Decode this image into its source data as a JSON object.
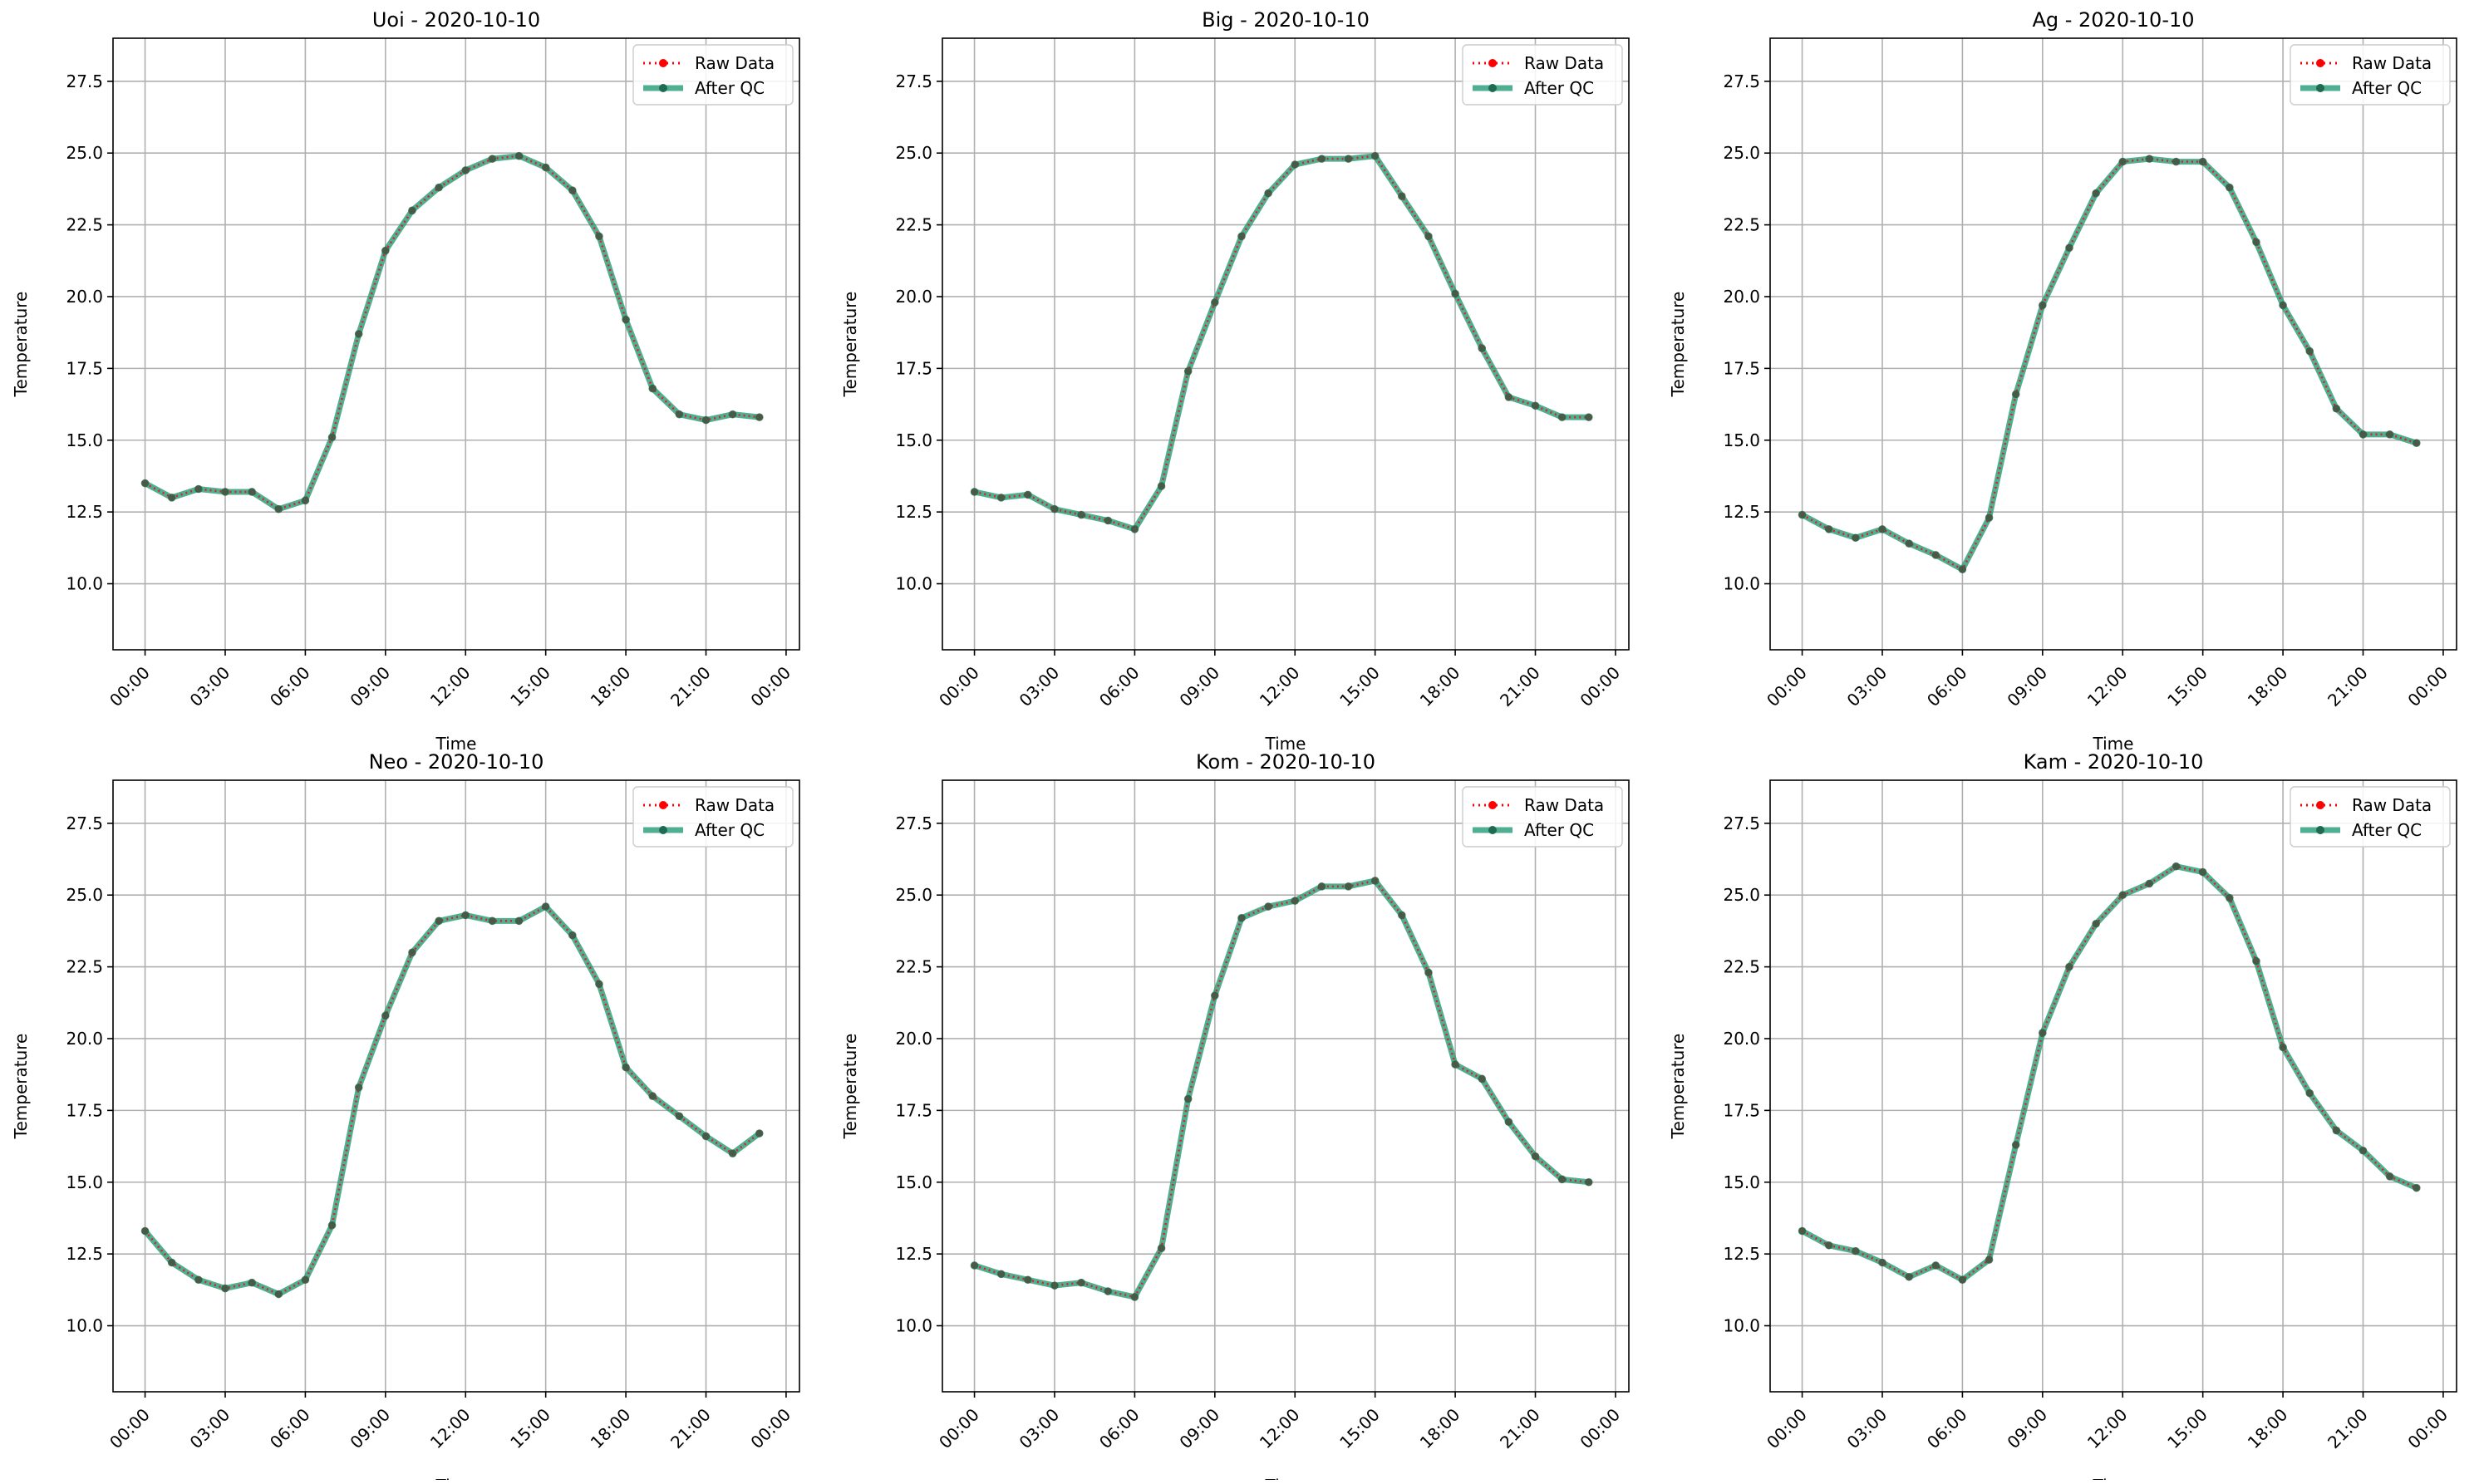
{
  "figure": {
    "background": "#ffffff"
  },
  "colors": {
    "raw": "#ff0000",
    "qc": "#2a9d7a",
    "grid": "#b0b0b0",
    "axis": "#000000"
  },
  "chart_data": [
    {
      "type": "line",
      "title": "Uoi - 2020-10-10",
      "xlabel": "Time",
      "ylabel": "Temperature",
      "x": [
        "00:00",
        "01:00",
        "02:00",
        "03:00",
        "04:00",
        "05:00",
        "06:00",
        "07:00",
        "08:00",
        "09:00",
        "10:00",
        "11:00",
        "12:00",
        "13:00",
        "14:00",
        "15:00",
        "16:00",
        "17:00",
        "18:00",
        "19:00",
        "20:00",
        "21:00",
        "22:00",
        "23:00"
      ],
      "xticks": [
        "00:00",
        "03:00",
        "06:00",
        "09:00",
        "12:00",
        "15:00",
        "18:00",
        "21:00",
        "00:00"
      ],
      "yticks": [
        "10.0",
        "12.5",
        "15.0",
        "17.5",
        "20.0",
        "22.5",
        "25.0",
        "27.5"
      ],
      "ylim": [
        7.7,
        29.0
      ],
      "xlim_hours": [
        -1.2,
        24.5
      ],
      "grid": true,
      "legend_position": "top-right",
      "series": [
        {
          "name": "Raw Data",
          "style": "dotted-red",
          "values": [
            13.5,
            13.0,
            13.3,
            13.2,
            13.2,
            12.6,
            12.9,
            15.1,
            18.7,
            21.6,
            23.0,
            23.8,
            24.4,
            24.8,
            24.9,
            24.5,
            23.7,
            22.1,
            19.2,
            16.8,
            15.9,
            15.7,
            15.9,
            15.8
          ]
        },
        {
          "name": "After QC",
          "style": "solid-green",
          "values": [
            13.5,
            13.0,
            13.3,
            13.2,
            13.2,
            12.6,
            12.9,
            15.1,
            18.7,
            21.6,
            23.0,
            23.8,
            24.4,
            24.8,
            24.9,
            24.5,
            23.7,
            22.1,
            19.2,
            16.8,
            15.9,
            15.7,
            15.9,
            15.8
          ]
        }
      ]
    },
    {
      "type": "line",
      "title": "Big - 2020-10-10",
      "xlabel": "Time",
      "ylabel": "Temperature",
      "x": [
        "00:00",
        "01:00",
        "02:00",
        "03:00",
        "04:00",
        "05:00",
        "06:00",
        "07:00",
        "08:00",
        "09:00",
        "10:00",
        "11:00",
        "12:00",
        "13:00",
        "14:00",
        "15:00",
        "16:00",
        "17:00",
        "18:00",
        "19:00",
        "20:00",
        "21:00",
        "22:00",
        "23:00"
      ],
      "xticks": [
        "00:00",
        "03:00",
        "06:00",
        "09:00",
        "12:00",
        "15:00",
        "18:00",
        "21:00",
        "00:00"
      ],
      "yticks": [
        "10.0",
        "12.5",
        "15.0",
        "17.5",
        "20.0",
        "22.5",
        "25.0",
        "27.5"
      ],
      "ylim": [
        7.7,
        29.0
      ],
      "xlim_hours": [
        -1.2,
        24.5
      ],
      "grid": true,
      "legend_position": "top-right",
      "series": [
        {
          "name": "Raw Data",
          "style": "dotted-red",
          "values": [
            13.2,
            13.0,
            13.1,
            12.6,
            12.4,
            12.2,
            11.9,
            13.4,
            17.4,
            19.8,
            22.1,
            23.6,
            24.6,
            24.8,
            24.8,
            24.9,
            23.5,
            22.1,
            20.1,
            18.2,
            16.5,
            16.2,
            15.8,
            15.8
          ]
        },
        {
          "name": "After QC",
          "style": "solid-green",
          "values": [
            13.2,
            13.0,
            13.1,
            12.6,
            12.4,
            12.2,
            11.9,
            13.4,
            17.4,
            19.8,
            22.1,
            23.6,
            24.6,
            24.8,
            24.8,
            24.9,
            23.5,
            22.1,
            20.1,
            18.2,
            16.5,
            16.2,
            15.8,
            15.8
          ]
        }
      ]
    },
    {
      "type": "line",
      "title": "Ag - 2020-10-10",
      "xlabel": "Time",
      "ylabel": "Temperature",
      "x": [
        "00:00",
        "01:00",
        "02:00",
        "03:00",
        "04:00",
        "05:00",
        "06:00",
        "07:00",
        "08:00",
        "09:00",
        "10:00",
        "11:00",
        "12:00",
        "13:00",
        "14:00",
        "15:00",
        "16:00",
        "17:00",
        "18:00",
        "19:00",
        "20:00",
        "21:00",
        "22:00",
        "23:00"
      ],
      "xticks": [
        "00:00",
        "03:00",
        "06:00",
        "09:00",
        "12:00",
        "15:00",
        "18:00",
        "21:00",
        "00:00"
      ],
      "yticks": [
        "10.0",
        "12.5",
        "15.0",
        "17.5",
        "20.0",
        "22.5",
        "25.0",
        "27.5"
      ],
      "ylim": [
        7.7,
        29.0
      ],
      "xlim_hours": [
        -1.2,
        24.5
      ],
      "grid": true,
      "legend_position": "top-right",
      "series": [
        {
          "name": "Raw Data",
          "style": "dotted-red",
          "values": [
            12.4,
            11.9,
            11.6,
            11.9,
            11.4,
            11.0,
            10.5,
            12.3,
            16.6,
            19.7,
            21.7,
            23.6,
            24.7,
            24.8,
            24.7,
            24.7,
            23.8,
            21.9,
            19.7,
            18.1,
            16.1,
            15.2,
            15.2,
            14.9
          ]
        },
        {
          "name": "After QC",
          "style": "solid-green",
          "values": [
            12.4,
            11.9,
            11.6,
            11.9,
            11.4,
            11.0,
            10.5,
            12.3,
            16.6,
            19.7,
            21.7,
            23.6,
            24.7,
            24.8,
            24.7,
            24.7,
            23.8,
            21.9,
            19.7,
            18.1,
            16.1,
            15.2,
            15.2,
            14.9
          ]
        }
      ]
    },
    {
      "type": "line",
      "title": "Neo - 2020-10-10",
      "xlabel": "Time",
      "ylabel": "Temperature",
      "x": [
        "00:00",
        "01:00",
        "02:00",
        "03:00",
        "04:00",
        "05:00",
        "06:00",
        "07:00",
        "08:00",
        "09:00",
        "10:00",
        "11:00",
        "12:00",
        "13:00",
        "14:00",
        "15:00",
        "16:00",
        "17:00",
        "18:00",
        "19:00",
        "20:00",
        "21:00",
        "22:00",
        "23:00"
      ],
      "xticks": [
        "00:00",
        "03:00",
        "06:00",
        "09:00",
        "12:00",
        "15:00",
        "18:00",
        "21:00",
        "00:00"
      ],
      "yticks": [
        "10.0",
        "12.5",
        "15.0",
        "17.5",
        "20.0",
        "22.5",
        "25.0",
        "27.5"
      ],
      "ylim": [
        7.7,
        29.0
      ],
      "xlim_hours": [
        -1.2,
        24.5
      ],
      "grid": true,
      "legend_position": "top-right",
      "series": [
        {
          "name": "Raw Data",
          "style": "dotted-red",
          "values": [
            13.3,
            12.2,
            11.6,
            11.3,
            11.5,
            11.1,
            11.6,
            13.5,
            18.3,
            20.8,
            23.0,
            24.1,
            24.3,
            24.1,
            24.1,
            24.6,
            23.6,
            21.9,
            19.0,
            18.0,
            17.3,
            16.6,
            16.0,
            16.7
          ]
        },
        {
          "name": "After QC",
          "style": "solid-green",
          "values": [
            13.3,
            12.2,
            11.6,
            11.3,
            11.5,
            11.1,
            11.6,
            13.5,
            18.3,
            20.8,
            23.0,
            24.1,
            24.3,
            24.1,
            24.1,
            24.6,
            23.6,
            21.9,
            19.0,
            18.0,
            17.3,
            16.6,
            16.0,
            16.7
          ]
        }
      ]
    },
    {
      "type": "line",
      "title": "Kom - 2020-10-10",
      "xlabel": "Time",
      "ylabel": "Temperature",
      "x": [
        "00:00",
        "01:00",
        "02:00",
        "03:00",
        "04:00",
        "05:00",
        "06:00",
        "07:00",
        "08:00",
        "09:00",
        "10:00",
        "11:00",
        "12:00",
        "13:00",
        "14:00",
        "15:00",
        "16:00",
        "17:00",
        "18:00",
        "19:00",
        "20:00",
        "21:00",
        "22:00",
        "23:00"
      ],
      "xticks": [
        "00:00",
        "03:00",
        "06:00",
        "09:00",
        "12:00",
        "15:00",
        "18:00",
        "21:00",
        "00:00"
      ],
      "yticks": [
        "10.0",
        "12.5",
        "15.0",
        "17.5",
        "20.0",
        "22.5",
        "25.0",
        "27.5"
      ],
      "ylim": [
        7.7,
        29.0
      ],
      "xlim_hours": [
        -1.2,
        24.5
      ],
      "grid": true,
      "legend_position": "top-right",
      "series": [
        {
          "name": "Raw Data",
          "style": "dotted-red",
          "values": [
            12.1,
            11.8,
            11.6,
            11.4,
            11.5,
            11.2,
            11.0,
            12.7,
            17.9,
            21.5,
            24.2,
            24.6,
            24.8,
            25.3,
            25.3,
            25.5,
            24.3,
            22.3,
            19.1,
            18.6,
            17.1,
            15.9,
            15.1,
            15.0
          ]
        },
        {
          "name": "After QC",
          "style": "solid-green",
          "values": [
            12.1,
            11.8,
            11.6,
            11.4,
            11.5,
            11.2,
            11.0,
            12.7,
            17.9,
            21.5,
            24.2,
            24.6,
            24.8,
            25.3,
            25.3,
            25.5,
            24.3,
            22.3,
            19.1,
            18.6,
            17.1,
            15.9,
            15.1,
            15.0
          ]
        }
      ]
    },
    {
      "type": "line",
      "title": "Kam - 2020-10-10",
      "xlabel": "Time",
      "ylabel": "Temperature",
      "x": [
        "00:00",
        "01:00",
        "02:00",
        "03:00",
        "04:00",
        "05:00",
        "06:00",
        "07:00",
        "08:00",
        "09:00",
        "10:00",
        "11:00",
        "12:00",
        "13:00",
        "14:00",
        "15:00",
        "16:00",
        "17:00",
        "18:00",
        "19:00",
        "20:00",
        "21:00",
        "22:00",
        "23:00"
      ],
      "xticks": [
        "00:00",
        "03:00",
        "06:00",
        "09:00",
        "12:00",
        "15:00",
        "18:00",
        "21:00",
        "00:00"
      ],
      "yticks": [
        "10.0",
        "12.5",
        "15.0",
        "17.5",
        "20.0",
        "22.5",
        "25.0",
        "27.5"
      ],
      "ylim": [
        7.7,
        29.0
      ],
      "xlim_hours": [
        -1.2,
        24.5
      ],
      "grid": true,
      "legend_position": "top-right",
      "series": [
        {
          "name": "Raw Data",
          "style": "dotted-red",
          "values": [
            13.3,
            12.8,
            12.6,
            12.2,
            11.7,
            12.1,
            11.6,
            12.3,
            16.3,
            20.2,
            22.5,
            24.0,
            25.0,
            25.4,
            26.0,
            25.8,
            24.9,
            22.7,
            19.7,
            18.1,
            16.8,
            16.1,
            15.2,
            14.8
          ]
        },
        {
          "name": "After QC",
          "style": "solid-green",
          "values": [
            13.3,
            12.8,
            12.6,
            12.2,
            11.7,
            12.1,
            11.6,
            12.3,
            16.3,
            20.2,
            22.5,
            24.0,
            25.0,
            25.4,
            26.0,
            25.8,
            24.9,
            22.7,
            19.7,
            18.1,
            16.8,
            16.1,
            15.2,
            14.8
          ]
        }
      ]
    }
  ]
}
